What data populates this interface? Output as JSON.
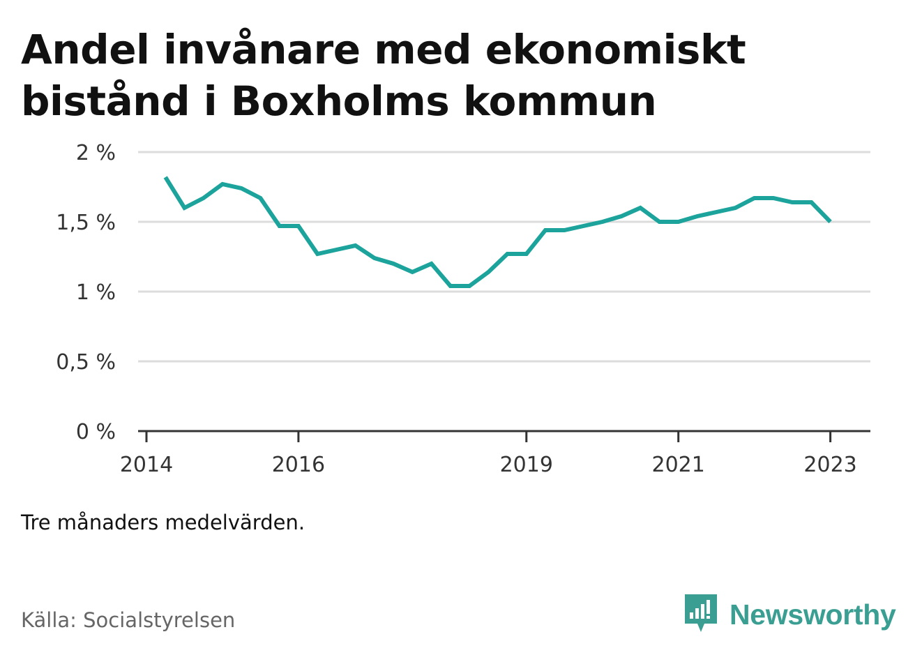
{
  "title_lines": [
    "Andel invånare med ekonomiskt",
    "bistånd i Boxholms kommun"
  ],
  "note": "Tre månaders medelvärden.",
  "source": "Källa: Socialstyrelsen",
  "brand": {
    "name": "Newsworthy",
    "icon": "newsworthy-logo-icon",
    "color": "#3a9f92"
  },
  "chart_data": {
    "type": "line",
    "title": "Andel invånare med ekonomiskt bistånd i Boxholms kommun",
    "xlabel": "",
    "ylabel": "",
    "ylim": [
      0,
      2
    ],
    "xlim": [
      "2014-01",
      "2023-06"
    ],
    "yticks": [
      {
        "value": 2,
        "label": "2 %"
      },
      {
        "value": 1.5,
        "label": "1,5 %"
      },
      {
        "value": 1,
        "label": "1 %"
      },
      {
        "value": 0.5,
        "label": "0,5 %"
      },
      {
        "value": 0,
        "label": "0 %"
      }
    ],
    "xticks": [
      {
        "value": "2014-01",
        "label": "2014"
      },
      {
        "value": "2016-01",
        "label": "2016"
      },
      {
        "value": "2019-01",
        "label": "2019"
      },
      {
        "value": "2021-01",
        "label": "2021"
      },
      {
        "value": "2023-01",
        "label": "2023"
      }
    ],
    "grid": true,
    "line_color": "#1ba39c",
    "series": [
      {
        "x": [
          "2014-04",
          "2014-07",
          "2014-10",
          "2015-01",
          "2015-04",
          "2015-07",
          "2015-10",
          "2016-01",
          "2016-04",
          "2016-07",
          "2016-10",
          "2017-01",
          "2017-04",
          "2017-07",
          "2017-10",
          "2018-01",
          "2018-04",
          "2018-07",
          "2018-10",
          "2019-01",
          "2019-04",
          "2019-07",
          "2019-10",
          "2020-01",
          "2020-04",
          "2020-07",
          "2020-10",
          "2021-01",
          "2021-04",
          "2021-07",
          "2021-10",
          "2022-01",
          "2022-04",
          "2022-07",
          "2022-10",
          "2023-01"
        ],
        "values": [
          1.82,
          1.6,
          1.67,
          1.77,
          1.74,
          1.67,
          1.47,
          1.47,
          1.27,
          1.3,
          1.33,
          1.24,
          1.2,
          1.14,
          1.2,
          1.04,
          1.04,
          1.14,
          1.27,
          1.27,
          1.44,
          1.44,
          1.47,
          1.5,
          1.54,
          1.6,
          1.5,
          1.5,
          1.54,
          1.57,
          1.6,
          1.67,
          1.67,
          1.64,
          1.64,
          1.5
        ]
      }
    ]
  }
}
